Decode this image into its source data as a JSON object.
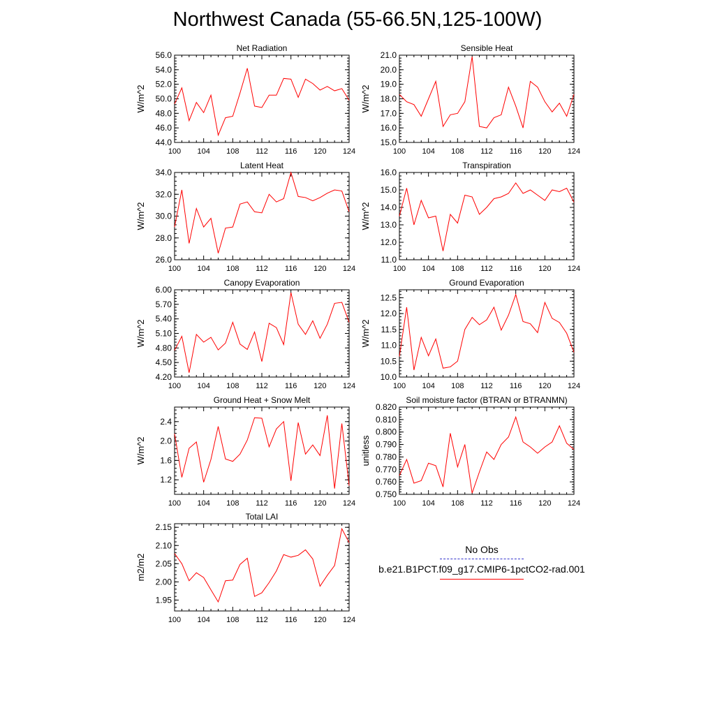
{
  "page_title": "Northwest Canada (55-66.5N,125-100W)",
  "colors": {
    "series": "#ff0000",
    "obs": "#3333cc",
    "axis": "#000000"
  },
  "legend": {
    "obs_label": "No Obs",
    "model_label": "b.e21.B1PCT.f09_g17.CMIP6-1pctCO2-rad.001"
  },
  "chart_data": [
    {
      "type": "line",
      "title": "Net Radiation",
      "ylabel": "W/m^2",
      "xlim": [
        100,
        124
      ],
      "ylim": [
        44,
        56
      ],
      "yticks": [
        44,
        46,
        48,
        50,
        52,
        54,
        56
      ],
      "ytick_labels": [
        "44.0",
        "46.0",
        "48.0",
        "50.0",
        "52.0",
        "54.0",
        "56.0"
      ],
      "xticks": [
        100,
        104,
        108,
        112,
        116,
        120,
        124
      ],
      "x": [
        100,
        101,
        102,
        103,
        104,
        105,
        106,
        107,
        108,
        109,
        110,
        111,
        112,
        113,
        114,
        115,
        116,
        117,
        118,
        119,
        120,
        121,
        122,
        123,
        124
      ],
      "series": [
        {
          "name": "b.e21.B1PCT.f09_g17.CMIP6-1pctCO2-rad.001",
          "values": [
            49.3,
            51.5,
            47.0,
            49.5,
            48.1,
            50.5,
            45.0,
            47.4,
            47.6,
            50.8,
            54.2,
            49.0,
            48.8,
            50.5,
            50.5,
            52.8,
            52.7,
            50.2,
            52.7,
            52.1,
            51.2,
            51.7,
            51.1,
            51.4,
            49.8
          ]
        }
      ]
    },
    {
      "type": "line",
      "title": "Sensible Heat",
      "ylabel": "W/m^2",
      "xlim": [
        100,
        124
      ],
      "ylim": [
        15,
        21
      ],
      "yticks": [
        15,
        16,
        17,
        18,
        19,
        20,
        21
      ],
      "ytick_labels": [
        "15.0",
        "16.0",
        "17.0",
        "18.0",
        "19.0",
        "20.0",
        "21.0"
      ],
      "xticks": [
        100,
        104,
        108,
        112,
        116,
        120,
        124
      ],
      "x": [
        100,
        101,
        102,
        103,
        104,
        105,
        106,
        107,
        108,
        109,
        110,
        111,
        112,
        113,
        114,
        115,
        116,
        117,
        118,
        119,
        120,
        121,
        122,
        123,
        124
      ],
      "series": [
        {
          "name": "b.e21.B1PCT.f09_g17.CMIP6-1pctCO2-rad.001",
          "values": [
            18.3,
            17.8,
            17.6,
            16.8,
            18.0,
            19.2,
            16.1,
            16.9,
            17.0,
            17.8,
            20.9,
            16.1,
            16.0,
            16.7,
            16.9,
            18.8,
            17.5,
            16.0,
            19.2,
            18.8,
            17.8,
            17.1,
            17.7,
            16.8,
            18.3
          ]
        }
      ]
    },
    {
      "type": "line",
      "title": "Latent Heat",
      "ylabel": "W/m^2",
      "xlim": [
        100,
        124
      ],
      "ylim": [
        26,
        34
      ],
      "yticks": [
        26,
        28,
        30,
        32,
        34
      ],
      "ytick_labels": [
        "26.0",
        "28.0",
        "30.0",
        "32.0",
        "34.0"
      ],
      "xticks": [
        100,
        104,
        108,
        112,
        116,
        120,
        124
      ],
      "x": [
        100,
        101,
        102,
        103,
        104,
        105,
        106,
        107,
        108,
        109,
        110,
        111,
        112,
        113,
        114,
        115,
        116,
        117,
        118,
        119,
        120,
        121,
        122,
        123,
        124
      ],
      "series": [
        {
          "name": "b.e21.B1PCT.f09_g17.CMIP6-1pctCO2-rad.001",
          "values": [
            29.0,
            32.4,
            27.5,
            30.7,
            29.0,
            29.8,
            26.6,
            28.9,
            29.0,
            31.1,
            31.3,
            30.4,
            30.3,
            32.0,
            31.3,
            31.6,
            34.0,
            31.8,
            31.7,
            31.4,
            31.7,
            32.1,
            32.4,
            32.3,
            30.4
          ]
        }
      ]
    },
    {
      "type": "line",
      "title": "Transpiration",
      "ylabel": "W/m^2",
      "xlim": [
        100,
        124
      ],
      "ylim": [
        11,
        16
      ],
      "yticks": [
        11,
        12,
        13,
        14,
        15,
        16
      ],
      "ytick_labels": [
        "11.0",
        "12.0",
        "13.0",
        "14.0",
        "15.0",
        "16.0"
      ],
      "xticks": [
        100,
        104,
        108,
        112,
        116,
        120,
        124
      ],
      "x": [
        100,
        101,
        102,
        103,
        104,
        105,
        106,
        107,
        108,
        109,
        110,
        111,
        112,
        113,
        114,
        115,
        116,
        117,
        118,
        119,
        120,
        121,
        122,
        123,
        124
      ],
      "series": [
        {
          "name": "b.e21.B1PCT.f09_g17.CMIP6-1pctCO2-rad.001",
          "values": [
            13.5,
            15.1,
            13.0,
            14.4,
            13.4,
            13.5,
            11.5,
            13.6,
            13.1,
            14.7,
            14.6,
            13.6,
            14.0,
            14.5,
            14.6,
            14.8,
            15.4,
            14.8,
            15.0,
            14.7,
            14.4,
            15.0,
            14.9,
            15.1,
            14.3
          ]
        }
      ]
    },
    {
      "type": "line",
      "title": "Canopy Evaporation",
      "ylabel": "W/m^2",
      "xlim": [
        100,
        124
      ],
      "ylim": [
        4.2,
        6.0
      ],
      "yticks": [
        4.2,
        4.5,
        4.8,
        5.1,
        5.4,
        5.7,
        6.0
      ],
      "ytick_labels": [
        "4.20",
        "4.50",
        "4.80",
        "5.10",
        "5.40",
        "5.70",
        "6.00"
      ],
      "xticks": [
        100,
        104,
        108,
        112,
        116,
        120,
        124
      ],
      "x": [
        100,
        101,
        102,
        103,
        104,
        105,
        106,
        107,
        108,
        109,
        110,
        111,
        112,
        113,
        114,
        115,
        116,
        117,
        118,
        119,
        120,
        121,
        122,
        123,
        124
      ],
      "series": [
        {
          "name": "b.e21.B1PCT.f09_g17.CMIP6-1pctCO2-rad.001",
          "values": [
            4.75,
            5.04,
            4.29,
            5.08,
            4.92,
            5.02,
            4.76,
            4.9,
            5.33,
            4.88,
            4.77,
            5.13,
            4.52,
            5.31,
            5.22,
            4.87,
            5.94,
            5.29,
            5.08,
            5.36,
            5.0,
            5.29,
            5.72,
            5.74,
            5.33
          ]
        }
      ]
    },
    {
      "type": "line",
      "title": "Ground Evaporation",
      "ylabel": "W/m^2",
      "xlim": [
        100,
        124
      ],
      "ylim": [
        10.0,
        12.75
      ],
      "yticks": [
        10.0,
        10.5,
        11.0,
        11.5,
        12.0,
        12.5
      ],
      "ytick_labels": [
        "10.0",
        "10.5",
        "11.0",
        "11.5",
        "12.0",
        "12.5"
      ],
      "xticks": [
        100,
        104,
        108,
        112,
        116,
        120,
        124
      ],
      "x": [
        100,
        101,
        102,
        103,
        104,
        105,
        106,
        107,
        108,
        109,
        110,
        111,
        112,
        113,
        114,
        115,
        116,
        117,
        118,
        119,
        120,
        121,
        122,
        123,
        124
      ],
      "series": [
        {
          "name": "b.e21.B1PCT.f09_g17.CMIP6-1pctCO2-rad.001",
          "values": [
            10.65,
            12.2,
            10.22,
            11.25,
            10.67,
            11.2,
            10.28,
            10.32,
            10.5,
            11.5,
            11.88,
            11.65,
            11.8,
            12.2,
            11.48,
            11.95,
            12.6,
            11.75,
            11.68,
            11.4,
            12.35,
            11.85,
            11.72,
            11.38,
            10.78
          ]
        }
      ]
    },
    {
      "type": "line",
      "title": "Ground Heat + Snow Melt",
      "ylabel": "W/m^2",
      "xlim": [
        100,
        124
      ],
      "ylim": [
        0.9,
        2.7
      ],
      "yticks": [
        1.2,
        1.6,
        2.0,
        2.4
      ],
      "ytick_labels": [
        "1.2",
        "1.6",
        "2.0",
        "2.4"
      ],
      "xticks": [
        100,
        104,
        108,
        112,
        116,
        120,
        124
      ],
      "x": [
        100,
        101,
        102,
        103,
        104,
        105,
        106,
        107,
        108,
        109,
        110,
        111,
        112,
        113,
        114,
        115,
        116,
        117,
        118,
        119,
        120,
        121,
        122,
        123,
        124
      ],
      "series": [
        {
          "name": "b.e21.B1PCT.f09_g17.CMIP6-1pctCO2-rad.001",
          "values": [
            2.15,
            1.25,
            1.85,
            1.98,
            1.15,
            1.62,
            2.3,
            1.63,
            1.58,
            1.73,
            2.02,
            2.48,
            2.47,
            1.88,
            2.25,
            2.4,
            1.18,
            2.38,
            1.73,
            1.92,
            1.7,
            2.53,
            1.02,
            2.36,
            1.08
          ]
        }
      ]
    },
    {
      "type": "line",
      "title": "Soil moisture factor (BTRAN or BTRANMN)",
      "ylabel": "unitless",
      "xlim": [
        100,
        124
      ],
      "ylim": [
        0.75,
        0.82
      ],
      "yticks": [
        0.75,
        0.76,
        0.77,
        0.78,
        0.79,
        0.8,
        0.81,
        0.82
      ],
      "ytick_labels": [
        "0.750",
        "0.760",
        "0.770",
        "0.780",
        "0.790",
        "0.800",
        "0.810",
        "0.820"
      ],
      "xticks": [
        100,
        104,
        108,
        112,
        116,
        120,
        124
      ],
      "x": [
        100,
        101,
        102,
        103,
        104,
        105,
        106,
        107,
        108,
        109,
        110,
        111,
        112,
        113,
        114,
        115,
        116,
        117,
        118,
        119,
        120,
        121,
        122,
        123,
        124
      ],
      "series": [
        {
          "name": "b.e21.B1PCT.f09_g17.CMIP6-1pctCO2-rad.001",
          "values": [
            0.765,
            0.778,
            0.759,
            0.761,
            0.775,
            0.773,
            0.756,
            0.799,
            0.772,
            0.79,
            0.751,
            0.768,
            0.784,
            0.778,
            0.79,
            0.796,
            0.812,
            0.792,
            0.788,
            0.783,
            0.788,
            0.792,
            0.805,
            0.791,
            0.786
          ]
        }
      ]
    },
    {
      "type": "line",
      "title": "Total LAI",
      "ylabel": "m2/m2",
      "xlim": [
        100,
        124
      ],
      "ylim": [
        1.92,
        2.16
      ],
      "yticks": [
        1.95,
        2.0,
        2.05,
        2.1,
        2.15
      ],
      "ytick_labels": [
        "1.95",
        "2.00",
        "2.05",
        "2.10",
        "2.15"
      ],
      "xticks": [
        100,
        104,
        108,
        112,
        116,
        120,
        124
      ],
      "x": [
        100,
        101,
        102,
        103,
        104,
        105,
        106,
        107,
        108,
        109,
        110,
        111,
        112,
        113,
        114,
        115,
        116,
        117,
        118,
        119,
        120,
        121,
        122,
        123,
        124
      ],
      "series": [
        {
          "name": "b.e21.B1PCT.f09_g17.CMIP6-1pctCO2-rad.001",
          "values": [
            2.078,
            2.05,
            2.003,
            2.025,
            2.012,
            1.978,
            1.945,
            2.003,
            2.005,
            2.048,
            2.065,
            1.96,
            1.97,
            1.998,
            2.03,
            2.075,
            2.068,
            2.073,
            2.088,
            2.063,
            1.988,
            2.018,
            2.045,
            2.146,
            2.108
          ]
        }
      ]
    }
  ]
}
